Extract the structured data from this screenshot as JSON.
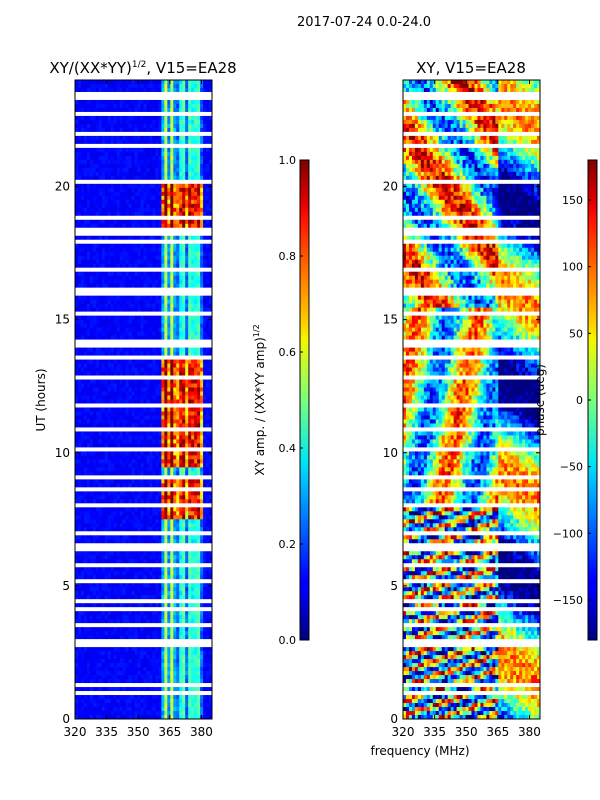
{
  "figure": {
    "suptitle": "2017-07-24 0.0-24.0",
    "shared_xlabel": "frequency (MHz)"
  },
  "chart_data": [
    {
      "type": "heatmap",
      "title_main": "XY/(XX*YY)",
      "title_sup": "1/2",
      "title_tail": ", V15=EA28",
      "xlabel": "",
      "ylabel": "UT (hours)",
      "xlim": [
        320,
        385
      ],
      "ylim": [
        0,
        24
      ],
      "xticks": [
        320,
        335,
        350,
        365,
        380
      ],
      "yticks": [
        0,
        5,
        10,
        15,
        20
      ],
      "flagged_hours": [
        0.9,
        1.25,
        2.8,
        2.95,
        3.6,
        4.1,
        4.4,
        5.2,
        5.8,
        6.3,
        6.5,
        6.9,
        7.0,
        8.1,
        8.6,
        9.1,
        10.2,
        10.9,
        11.8,
        12.8,
        13.6,
        14.1,
        14.2,
        15.3,
        15.9,
        16.1,
        16.9,
        17.9,
        18.3,
        18.35,
        18.8,
        20.2,
        21.5,
        22.0,
        22.8,
        23.3,
        23.5
      ],
      "colorbar": {
        "label_main": "XY amp. / (XX*YY amp)",
        "label_sup": "1/2",
        "min": 0.0,
        "max": 1.0,
        "ticks": [
          "0.0",
          "0.2",
          "0.4",
          "0.6",
          "0.8",
          "1.0"
        ],
        "colormap": "jet"
      }
    },
    {
      "type": "heatmap",
      "title": "XY, V15=EA28",
      "xlabel": "frequency (MHz)",
      "ylabel": "",
      "xlim": [
        320,
        385
      ],
      "ylim": [
        0,
        24
      ],
      "xticks": [
        320,
        335,
        350,
        365,
        380
      ],
      "yticks": [
        0,
        5,
        10,
        15,
        20
      ],
      "flagged_hours": [
        0.9,
        1.25,
        2.8,
        2.95,
        3.6,
        4.1,
        4.4,
        5.2,
        5.8,
        6.3,
        6.5,
        6.9,
        7.0,
        8.1,
        8.6,
        9.1,
        10.2,
        10.9,
        11.8,
        12.8,
        13.6,
        14.1,
        14.2,
        15.3,
        15.9,
        16.1,
        16.9,
        17.9,
        18.3,
        18.35,
        18.8,
        20.2,
        21.5,
        22.0,
        22.8,
        23.3,
        23.5
      ],
      "colorbar": {
        "label": "phase (deg)",
        "min": -180,
        "max": 180,
        "ticks": [
          "150",
          "100",
          "50",
          "0",
          "−50",
          "−100",
          "−150"
        ],
        "tick_values": [
          150,
          100,
          50,
          0,
          -50,
          -100,
          -150
        ],
        "colormap": "jet"
      }
    }
  ]
}
